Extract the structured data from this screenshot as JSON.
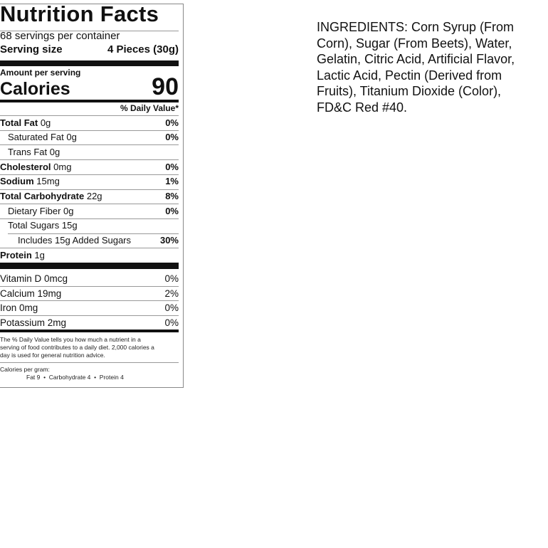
{
  "label": {
    "title": "Nutrition Facts",
    "servings": "68 servings per container",
    "serving_size_label": "Serving size",
    "serving_size_value": "4 Pieces (30g)",
    "amount_per_serving": "Amount per serving",
    "calories_label": "Calories",
    "calories_value": "90",
    "dv_header": "% Daily Value*",
    "nutrients": [
      {
        "name": "Total Fat",
        "amount": "0g",
        "dv": "0%"
      },
      {
        "name": "Saturated Fat 0g",
        "amount": "",
        "dv": "0%"
      },
      {
        "name": "Trans Fat 0g",
        "amount": "",
        "dv": ""
      },
      {
        "name": "Cholesterol",
        "amount": "0mg",
        "dv": "0%"
      },
      {
        "name": "Sodium",
        "amount": "15mg",
        "dv": "1%"
      },
      {
        "name": "Total Carbohydrate",
        "amount": "22g",
        "dv": "8%"
      },
      {
        "name": "Dietary Fiber 0g",
        "amount": "",
        "dv": "0%"
      },
      {
        "name": "Total Sugars 15g",
        "amount": "",
        "dv": ""
      },
      {
        "name": "Includes 15g Added Sugars",
        "amount": "",
        "dv": "30%"
      },
      {
        "name": "Protein",
        "amount": "1g",
        "dv": ""
      }
    ],
    "vitamins": [
      {
        "name": "Vitamin D 0mcg",
        "dv": "0%"
      },
      {
        "name": "Calcium 19mg",
        "dv": "2%"
      },
      {
        "name": "Iron 0mg",
        "dv": "0%"
      },
      {
        "name": "Potassium 2mg",
        "dv": "0%"
      }
    ],
    "footnote_lines": [
      "The % Daily Value tells you how much a nutrient in a",
      "serving of food contributes to a daily diet. 2,000 calories a",
      "day is used for general nutrition advice."
    ],
    "calories_per_gram_label": "Calories per gram:",
    "calories_per_gram": "Fat 9  •  Carbohydrate 4  •  Protein 4"
  },
  "ingredients": {
    "lines": [
      "INGREDIENTS: Corn Syrup (From",
      "Corn), Sugar (From Beets), Water,",
      "Gelatin, Citric Acid, Artificial Flavor,",
      "Lactic Acid, Pectin (Derived from",
      "Fruits), Titanium Dioxide (Color),",
      "FD&C Red #40."
    ]
  }
}
